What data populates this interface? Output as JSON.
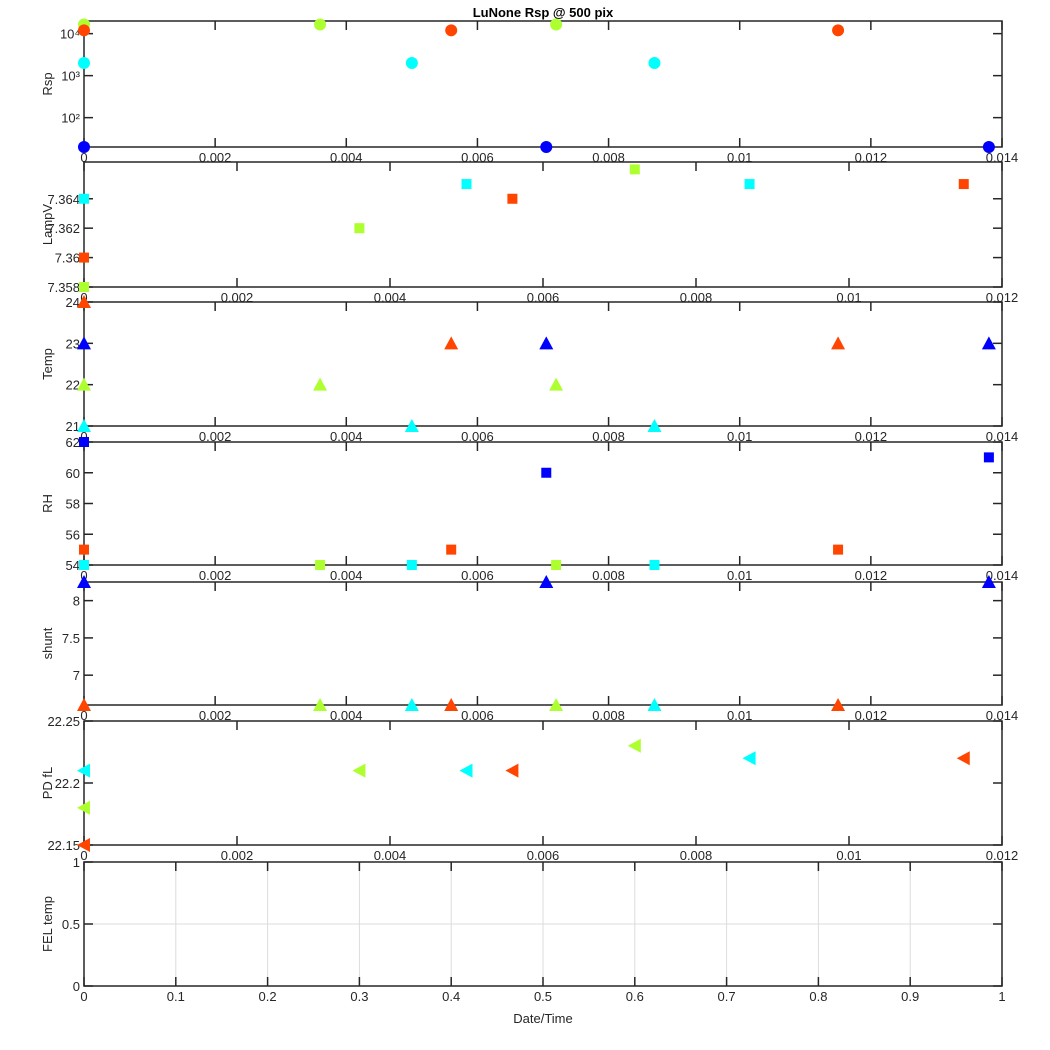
{
  "figure": {
    "title": "LuNone Rsp @ 500 pix"
  },
  "colors": {
    "red": "#ff4500",
    "green": "#adff2f",
    "cyan": "#00ffff",
    "blue": "#0000ff"
  },
  "chart_data": [
    {
      "type": "scatter",
      "ylabel": "Rsp",
      "yscale": "log",
      "ylim": [
        20,
        20000
      ],
      "yticks": [
        100,
        1000,
        10000
      ],
      "yticklabels": [
        "10²",
        "10³",
        "10⁴"
      ],
      "xlim": [
        0,
        0.014
      ],
      "xticks": [
        0,
        0.002,
        0.004,
        0.006,
        0.008,
        0.01,
        0.012,
        0.014
      ],
      "xticklabels": [
        "0",
        "0.002",
        "0.004",
        "0.006",
        "0.008",
        "0.01",
        "0.012",
        "0.014"
      ],
      "marker": "circle",
      "series": [
        {
          "color": "#adff2f",
          "x": [
            0,
            0.0036,
            0.0072
          ],
          "y": [
            16500,
            16500,
            16500
          ]
        },
        {
          "color": "#ff4500",
          "x": [
            0,
            0.0056,
            0.0115
          ],
          "y": [
            12000,
            12000,
            12000
          ]
        },
        {
          "color": "#00ffff",
          "x": [
            0,
            0.005,
            0.0087
          ],
          "y": [
            2000,
            2000,
            2000
          ]
        },
        {
          "color": "#0000ff",
          "x": [
            0,
            0.00705,
            0.0138
          ],
          "y": [
            20,
            20,
            20
          ]
        }
      ]
    },
    {
      "type": "scatter",
      "ylabel": "LampV",
      "ylim": [
        7.358,
        7.3665
      ],
      "yticks": [
        7.358,
        7.36,
        7.362,
        7.364
      ],
      "yticklabels": [
        "7.358",
        "7.36",
        "7.362",
        "7.364"
      ],
      "xlim": [
        0,
        0.012
      ],
      "xticks": [
        0,
        0.002,
        0.004,
        0.006,
        0.008,
        0.01,
        0.012
      ],
      "xticklabels": [
        "0",
        "0.002",
        "0.004",
        "0.006",
        "0.008",
        "0.01",
        "0.012"
      ],
      "marker": "square",
      "series": [
        {
          "color": "#adff2f",
          "x": [
            0,
            0.0036,
            0.0072
          ],
          "y": [
            7.358,
            7.362,
            7.366
          ]
        },
        {
          "color": "#ff4500",
          "x": [
            0,
            0.0056,
            0.0115
          ],
          "y": [
            7.36,
            7.364,
            7.365
          ]
        },
        {
          "color": "#00ffff",
          "x": [
            0,
            0.005,
            0.0087
          ],
          "y": [
            7.364,
            7.365,
            7.365
          ]
        }
      ]
    },
    {
      "type": "scatter",
      "ylabel": "Temp",
      "ylim": [
        21,
        24
      ],
      "yticks": [
        21,
        22,
        23,
        24
      ],
      "yticklabels": [
        "21",
        "22",
        "23",
        "24"
      ],
      "xlim": [
        0,
        0.014
      ],
      "xticks": [
        0,
        0.002,
        0.004,
        0.006,
        0.008,
        0.01,
        0.012,
        0.014
      ],
      "xticklabels": [
        "0",
        "0.002",
        "0.004",
        "0.006",
        "0.008",
        "0.01",
        "0.012",
        "0.014"
      ],
      "marker": "triangle-up",
      "series": [
        {
          "color": "#ff4500",
          "x": [
            0,
            0.0056,
            0.0115
          ],
          "y": [
            24,
            23,
            23
          ]
        },
        {
          "color": "#0000ff",
          "x": [
            0,
            0.00705,
            0.0138
          ],
          "y": [
            23,
            23,
            23
          ]
        },
        {
          "color": "#adff2f",
          "x": [
            0,
            0.0036,
            0.0072
          ],
          "y": [
            22,
            22,
            22
          ]
        },
        {
          "color": "#00ffff",
          "x": [
            0,
            0.005,
            0.0087
          ],
          "y": [
            21,
            21,
            21
          ]
        }
      ]
    },
    {
      "type": "scatter",
      "ylabel": "RH",
      "ylim": [
        54,
        62
      ],
      "yticks": [
        54,
        56,
        58,
        60,
        62
      ],
      "yticklabels": [
        "54",
        "56",
        "58",
        "60",
        "62"
      ],
      "xlim": [
        0,
        0.014
      ],
      "xticks": [
        0,
        0.002,
        0.004,
        0.006,
        0.008,
        0.01,
        0.012,
        0.014
      ],
      "xticklabels": [
        "0",
        "0.002",
        "0.004",
        "0.006",
        "0.008",
        "0.01",
        "0.012",
        "0.014"
      ],
      "marker": "square",
      "series": [
        {
          "color": "#0000ff",
          "x": [
            0,
            0.00705,
            0.0138
          ],
          "y": [
            62,
            60,
            61
          ]
        },
        {
          "color": "#ff4500",
          "x": [
            0,
            0.0056,
            0.0115
          ],
          "y": [
            55,
            55,
            55
          ]
        },
        {
          "color": "#00ffff",
          "x": [
            0,
            0.005,
            0.0087
          ],
          "y": [
            54,
            54,
            54
          ]
        },
        {
          "color": "#adff2f",
          "x": [
            0.0036,
            0.0072
          ],
          "y": [
            54,
            54
          ]
        }
      ]
    },
    {
      "type": "scatter",
      "ylabel": "shunt",
      "ylim": [
        6.6,
        8.25
      ],
      "yticks": [
        7,
        7.5,
        8
      ],
      "yticklabels": [
        "7",
        "7.5",
        "8"
      ],
      "xlim": [
        0,
        0.014
      ],
      "xticks": [
        0,
        0.002,
        0.004,
        0.006,
        0.008,
        0.01,
        0.012,
        0.014
      ],
      "xticklabels": [
        "0",
        "0.002",
        "0.004",
        "0.006",
        "0.008",
        "0.01",
        "0.012",
        "0.014"
      ],
      "marker": "triangle-up",
      "series": [
        {
          "color": "#0000ff",
          "x": [
            0,
            0.00705,
            0.0138
          ],
          "y": [
            8.25,
            8.25,
            8.25
          ]
        },
        {
          "color": "#ff4500",
          "x": [
            0,
            0.0056,
            0.0115
          ],
          "y": [
            6.6,
            6.6,
            6.6
          ]
        },
        {
          "color": "#adff2f",
          "x": [
            0.0036,
            0.0072
          ],
          "y": [
            6.6,
            6.6
          ]
        },
        {
          "color": "#00ffff",
          "x": [
            0.005,
            0.0087
          ],
          "y": [
            6.6,
            6.6
          ]
        }
      ]
    },
    {
      "type": "scatter",
      "ylabel": "PD fL",
      "ylim": [
        22.15,
        22.25
      ],
      "yticks": [
        22.15,
        22.2,
        22.25
      ],
      "yticklabels": [
        "22.15",
        "22.2",
        "22.25"
      ],
      "xlim": [
        0,
        0.012
      ],
      "xticks": [
        0,
        0.002,
        0.004,
        0.006,
        0.008,
        0.01,
        0.012
      ],
      "xticklabels": [
        "0",
        "0.002",
        "0.004",
        "0.006",
        "0.008",
        "0.01",
        "0.012"
      ],
      "marker": "triangle-left",
      "series": [
        {
          "color": "#00ffff",
          "x": [
            0,
            0.005,
            0.0087
          ],
          "y": [
            22.21,
            22.21,
            22.22
          ]
        },
        {
          "color": "#adff2f",
          "x": [
            0,
            0.0036,
            0.0072
          ],
          "y": [
            22.18,
            22.21,
            22.23
          ]
        },
        {
          "color": "#ff4500",
          "x": [
            0,
            0.0056,
            0.0115
          ],
          "y": [
            22.15,
            22.21,
            22.22
          ]
        }
      ]
    },
    {
      "type": "scatter",
      "ylabel": "FEL temp",
      "xlabel": "Date/Time",
      "grid": true,
      "ylim": [
        0,
        1
      ],
      "yticks": [
        0,
        0.5,
        1
      ],
      "yticklabels": [
        "0",
        "0.5",
        "1"
      ],
      "xlim": [
        0,
        1
      ],
      "xticks": [
        0,
        0.1,
        0.2,
        0.3,
        0.4,
        0.5,
        0.6,
        0.7,
        0.8,
        0.9,
        1
      ],
      "xticklabels": [
        "0",
        "0.1",
        "0.2",
        "0.3",
        "0.4",
        "0.5",
        "0.6",
        "0.7",
        "0.8",
        "0.9",
        "1"
      ],
      "marker": "none",
      "series": []
    }
  ]
}
